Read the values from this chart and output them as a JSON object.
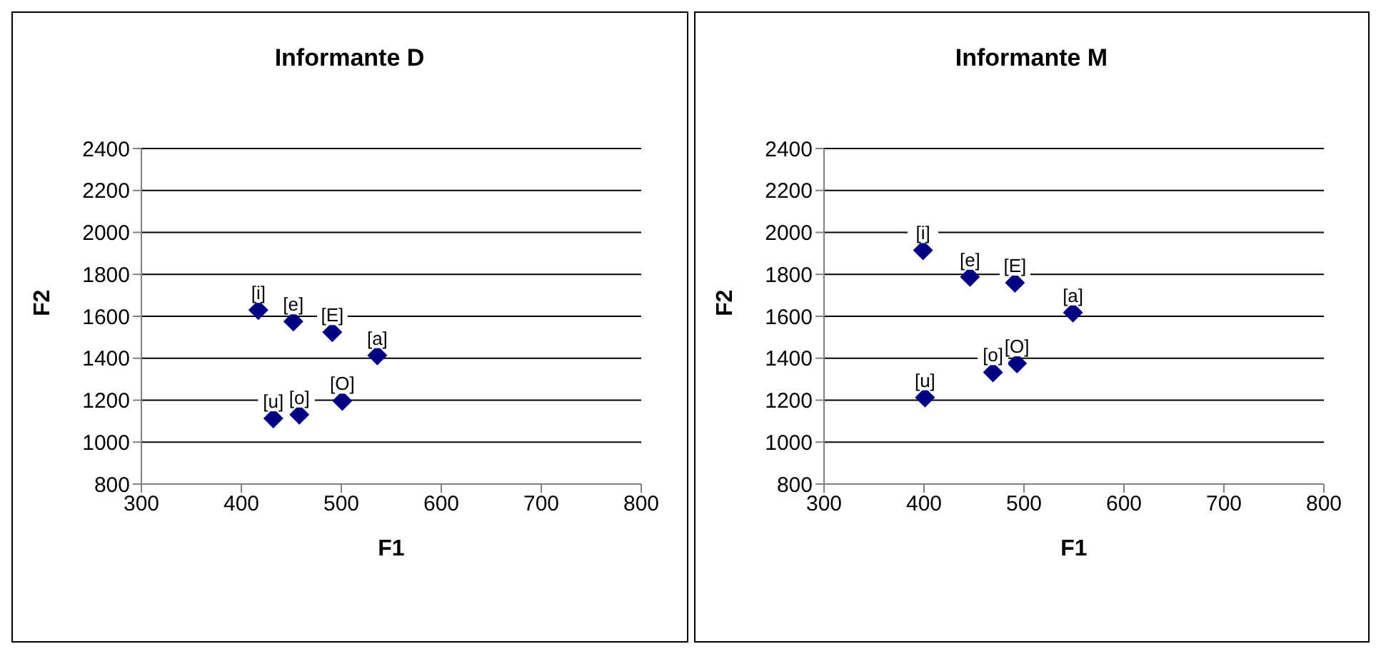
{
  "chart_data": [
    {
      "type": "scatter",
      "title": "Informante D",
      "xlabel": "F1",
      "ylabel": "F2",
      "x": [
        417,
        452,
        491,
        536,
        501,
        458,
        432
      ],
      "values": [
        1630,
        1575,
        1524,
        1414,
        1197,
        1131,
        1113
      ],
      "color": "#000080",
      "marker": "diamond",
      "xlim": [
        300,
        800
      ],
      "xticks": [
        300,
        400,
        500,
        600,
        700,
        800
      ],
      "ylim": [
        800,
        2400
      ],
      "yticks": [
        800,
        1000,
        1200,
        1400,
        1600,
        1800,
        2000,
        2200,
        2400
      ],
      "grid": "y",
      "legend": false,
      "annotations": [
        {
          "text": "[i]",
          "x": 417,
          "y": 1630
        },
        {
          "text": "[e]",
          "x": 452,
          "y": 1575
        },
        {
          "text": "[E]",
          "x": 491,
          "y": 1524
        },
        {
          "text": "[a]",
          "x": 536,
          "y": 1414
        },
        {
          "text": "[O]",
          "x": 501,
          "y": 1197
        },
        {
          "text": "[o]",
          "x": 458,
          "y": 1131
        },
        {
          "text": "[u]",
          "x": 432,
          "y": 1113
        }
      ]
    },
    {
      "type": "scatter",
      "title": "Informante M",
      "xlabel": "F1",
      "ylabel": "F2",
      "x": [
        399,
        446,
        491,
        549,
        493,
        469,
        401
      ],
      "values": [
        1915,
        1788,
        1760,
        1618,
        1375,
        1333,
        1213
      ],
      "color": "#000080",
      "marker": "diamond",
      "xlim": [
        300,
        800
      ],
      "xticks": [
        300,
        400,
        500,
        600,
        700,
        800
      ],
      "ylim": [
        800,
        2400
      ],
      "yticks": [
        800,
        1000,
        1200,
        1400,
        1600,
        1800,
        2000,
        2200,
        2400
      ],
      "grid": "y",
      "legend": false,
      "annotations": [
        {
          "text": "[i]",
          "x": 399,
          "y": 1915
        },
        {
          "text": "[e]",
          "x": 446,
          "y": 1788
        },
        {
          "text": "[E]",
          "x": 491,
          "y": 1760
        },
        {
          "text": "[a]",
          "x": 549,
          "y": 1618
        },
        {
          "text": "[O]",
          "x": 493,
          "y": 1375
        },
        {
          "text": "[o]",
          "x": 469,
          "y": 1333
        },
        {
          "text": "[u]",
          "x": 401,
          "y": 1213
        }
      ]
    }
  ]
}
